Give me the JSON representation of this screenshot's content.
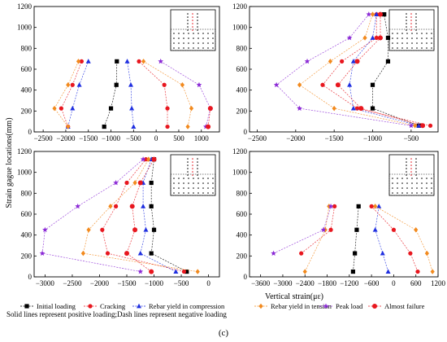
{
  "figure": {
    "ylabel": "Strain gague locations(mm)",
    "xlabel": "Vertical strain(με)",
    "note": "Solid lines represent positive loading;Dash lines represent negative loading",
    "panel_label": "(c)"
  },
  "legend": [
    {
      "key": "initial",
      "label": "Initial loading",
      "color": "#000000",
      "marker": "square"
    },
    {
      "key": "cracking",
      "label": "Cracking",
      "color": "#e8171f",
      "marker": "circle"
    },
    {
      "key": "rebar_comp",
      "label": "Rebar yield in compression",
      "color": "#1f2fe0",
      "marker": "triangle"
    },
    {
      "key": "rebar_tens",
      "label": "Rebar yield in tension",
      "color": "#f28a1e",
      "marker": "diamond"
    },
    {
      "key": "peak",
      "label": "Peak load",
      "color": "#8c2bd6",
      "marker": "star"
    },
    {
      "key": "failure",
      "label": "Almost failure",
      "color": "#e8171f",
      "marker": "hexagon"
    }
  ],
  "chart_data": [
    {
      "type": "line",
      "panel": "top-left",
      "xlim": [
        -2700,
        1400
      ],
      "ylim": [
        0,
        1200
      ],
      "xticks": [
        -2500,
        -2000,
        -1500,
        -1000,
        -500,
        0,
        500,
        1000
      ],
      "yticks": [
        0,
        200,
        400,
        600,
        800,
        1000,
        1200
      ],
      "series": [
        {
          "key": "initial",
          "points": [
            [
              -1150,
              50
            ],
            [
              -1000,
              225
            ],
            [
              -880,
              450
            ],
            [
              -870,
              675
            ]
          ]
        },
        {
          "key": "cracking",
          "points": [
            [
              -1950,
              50
            ],
            [
              -2100,
              225
            ],
            [
              -1850,
              450
            ],
            [
              -1650,
              675
            ]
          ]
        },
        {
          "key": "rebar_comp",
          "points": [
            [
              -1950,
              50
            ],
            [
              -1850,
              225
            ],
            [
              -1700,
              450
            ],
            [
              -1500,
              675
            ]
          ]
        },
        {
          "key": "rebar_tens",
          "points": [
            [
              -1950,
              50
            ],
            [
              -2250,
              225
            ],
            [
              -1950,
              450
            ],
            [
              -1720,
              675
            ]
          ]
        },
        {
          "key": "cracking",
          "points": [
            [
              250,
              50
            ],
            [
              250,
              225
            ],
            [
              180,
              450
            ],
            [
              -380,
              675
            ]
          ]
        },
        {
          "key": "rebar_comp",
          "points": [
            [
              -500,
              50
            ],
            [
              -540,
              225
            ],
            [
              -560,
              450
            ],
            [
              -640,
              675
            ]
          ]
        },
        {
          "key": "rebar_tens",
          "points": [
            [
              700,
              50
            ],
            [
              780,
              225
            ],
            [
              580,
              450
            ],
            [
              -280,
              675
            ]
          ]
        },
        {
          "key": "peak",
          "points": [
            [
              1100,
              50
            ],
            [
              1200,
              225
            ],
            [
              950,
              450
            ],
            [
              100,
              675
            ]
          ]
        },
        {
          "key": "failure",
          "points": [
            [
              1150,
              50
            ],
            [
              1200,
              225
            ]
          ]
        }
      ]
    },
    {
      "type": "line",
      "panel": "top-right",
      "xlim": [
        -2600,
        -150
      ],
      "ylim": [
        0,
        1200
      ],
      "xticks": [
        -2500,
        -2000,
        -1500,
        -1000,
        -500
      ],
      "yticks": [
        0,
        200,
        400,
        600,
        800,
        1000,
        1200
      ],
      "series": [
        {
          "key": "initial",
          "points": [
            [
              -400,
              60
            ],
            [
              -1000,
              225
            ],
            [
              -1000,
              450
            ],
            [
              -800,
              675
            ],
            [
              -800,
              900
            ],
            [
              -850,
              1125
            ]
          ]
        },
        {
          "key": "cracking",
          "points": [
            [
              -250,
              60
            ],
            [
              -1200,
              225
            ],
            [
              -1650,
              450
            ],
            [
              -1400,
              675
            ],
            [
              -950,
              900
            ],
            [
              -950,
              1125
            ]
          ]
        },
        {
          "key": "rebar_comp",
          "points": [
            [
              -400,
              60
            ],
            [
              -1250,
              225
            ],
            [
              -1300,
              450
            ],
            [
              -1250,
              675
            ],
            [
              -1000,
              900
            ],
            [
              -950,
              1125
            ]
          ]
        },
        {
          "key": "rebar_tens",
          "points": [
            [
              -450,
              60
            ],
            [
              -1500,
              225
            ],
            [
              -1950,
              450
            ],
            [
              -1550,
              675
            ],
            [
              -1100,
              900
            ],
            [
              -1000,
              1125
            ]
          ]
        },
        {
          "key": "peak",
          "points": [
            [
              -500,
              60
            ],
            [
              -1950,
              225
            ],
            [
              -2250,
              450
            ],
            [
              -1850,
              675
            ],
            [
              -1300,
              900
            ],
            [
              -1050,
              1125
            ]
          ]
        },
        {
          "key": "failure",
          "points": [
            [
              -350,
              60
            ],
            [
              -1150,
              225
            ],
            [
              -1450,
              450
            ],
            [
              -1200,
              675
            ],
            [
              -900,
              900
            ],
            [
              -900,
              1125
            ]
          ]
        }
      ]
    },
    {
      "type": "line",
      "panel": "bottom-left",
      "xlim": [
        -3200,
        200
      ],
      "ylim": [
        0,
        1200
      ],
      "xticks": [
        -3000,
        -2500,
        -2000,
        -1500,
        -1000,
        -500,
        0
      ],
      "yticks": [
        0,
        200,
        400,
        600,
        800,
        1000,
        1200
      ],
      "series": [
        {
          "key": "initial",
          "points": [
            [
              -400,
              50
            ],
            [
              -1050,
              225
            ],
            [
              -1000,
              450
            ],
            [
              -1050,
              675
            ],
            [
              -1050,
              900
            ],
            [
              -1000,
              1125
            ]
          ]
        },
        {
          "key": "cracking",
          "points": [
            [
              -450,
              50
            ],
            [
              -1850,
              225
            ],
            [
              -1950,
              450
            ],
            [
              -1700,
              675
            ],
            [
              -1500,
              900
            ],
            [
              -1150,
              1125
            ]
          ]
        },
        {
          "key": "rebar_comp",
          "points": [
            [
              -600,
              50
            ],
            [
              -1250,
              225
            ],
            [
              -1150,
              450
            ],
            [
              -1200,
              675
            ],
            [
              -1200,
              900
            ],
            [
              -1050,
              1125
            ]
          ]
        },
        {
          "key": "rebar_tens",
          "points": [
            [
              -200,
              50
            ],
            [
              -2300,
              225
            ],
            [
              -2200,
              450
            ],
            [
              -1800,
              675
            ],
            [
              -1350,
              900
            ],
            [
              -1100,
              1125
            ]
          ]
        },
        {
          "key": "peak",
          "points": [
            [
              -1250,
              50
            ],
            [
              -3050,
              225
            ],
            [
              -3000,
              450
            ],
            [
              -2400,
              675
            ],
            [
              -1700,
              900
            ],
            [
              -1200,
              1125
            ]
          ]
        },
        {
          "key": "failure",
          "points": [
            [
              -1050,
              50
            ],
            [
              -1500,
              225
            ],
            [
              -1350,
              450
            ],
            [
              -1400,
              675
            ],
            [
              -1250,
              900
            ],
            [
              -1000,
              1125
            ]
          ]
        }
      ]
    },
    {
      "type": "line",
      "panel": "bottom-right",
      "xlim": [
        -3900,
        1200
      ],
      "ylim": [
        0,
        1200
      ],
      "xticks": [
        -3600,
        -3000,
        -2400,
        -1800,
        -1200,
        -600,
        0,
        600,
        1200
      ],
      "yticks": [
        0,
        200,
        400,
        600,
        800,
        1000,
        1200
      ],
      "series": [
        {
          "key": "initial",
          "points": [
            [
              -1100,
              50
            ],
            [
              -1050,
              225
            ],
            [
              -1000,
              450
            ],
            [
              -950,
              675
            ]
          ]
        },
        {
          "key": "cracking",
          "points": [
            [
              -2500,
              225
            ],
            [
              -1700,
              450
            ],
            [
              -1600,
              675
            ]
          ]
        },
        {
          "key": "rebar_comp",
          "points": [
            [
              -150,
              50
            ],
            [
              -300,
              225
            ],
            [
              -500,
              450
            ],
            [
              -400,
              675
            ]
          ]
        },
        {
          "key": "rebar_tens",
          "points": [
            [
              -2400,
              50
            ],
            [
              -1850,
              450
            ],
            [
              -1750,
              675
            ]
          ]
        },
        {
          "key": "peak",
          "points": [
            [
              -3250,
              225
            ],
            [
              -1900,
              450
            ],
            [
              -1700,
              675
            ]
          ]
        },
        {
          "key": "rebar_tens",
          "points": [
            [
              1050,
              50
            ],
            [
              900,
              225
            ],
            [
              600,
              450
            ],
            [
              -500,
              675
            ]
          ]
        },
        {
          "key": "cracking",
          "points": [
            [
              650,
              50
            ],
            [
              450,
              225
            ],
            [
              0,
              450
            ],
            [
              -600,
              675
            ]
          ]
        }
      ]
    }
  ]
}
